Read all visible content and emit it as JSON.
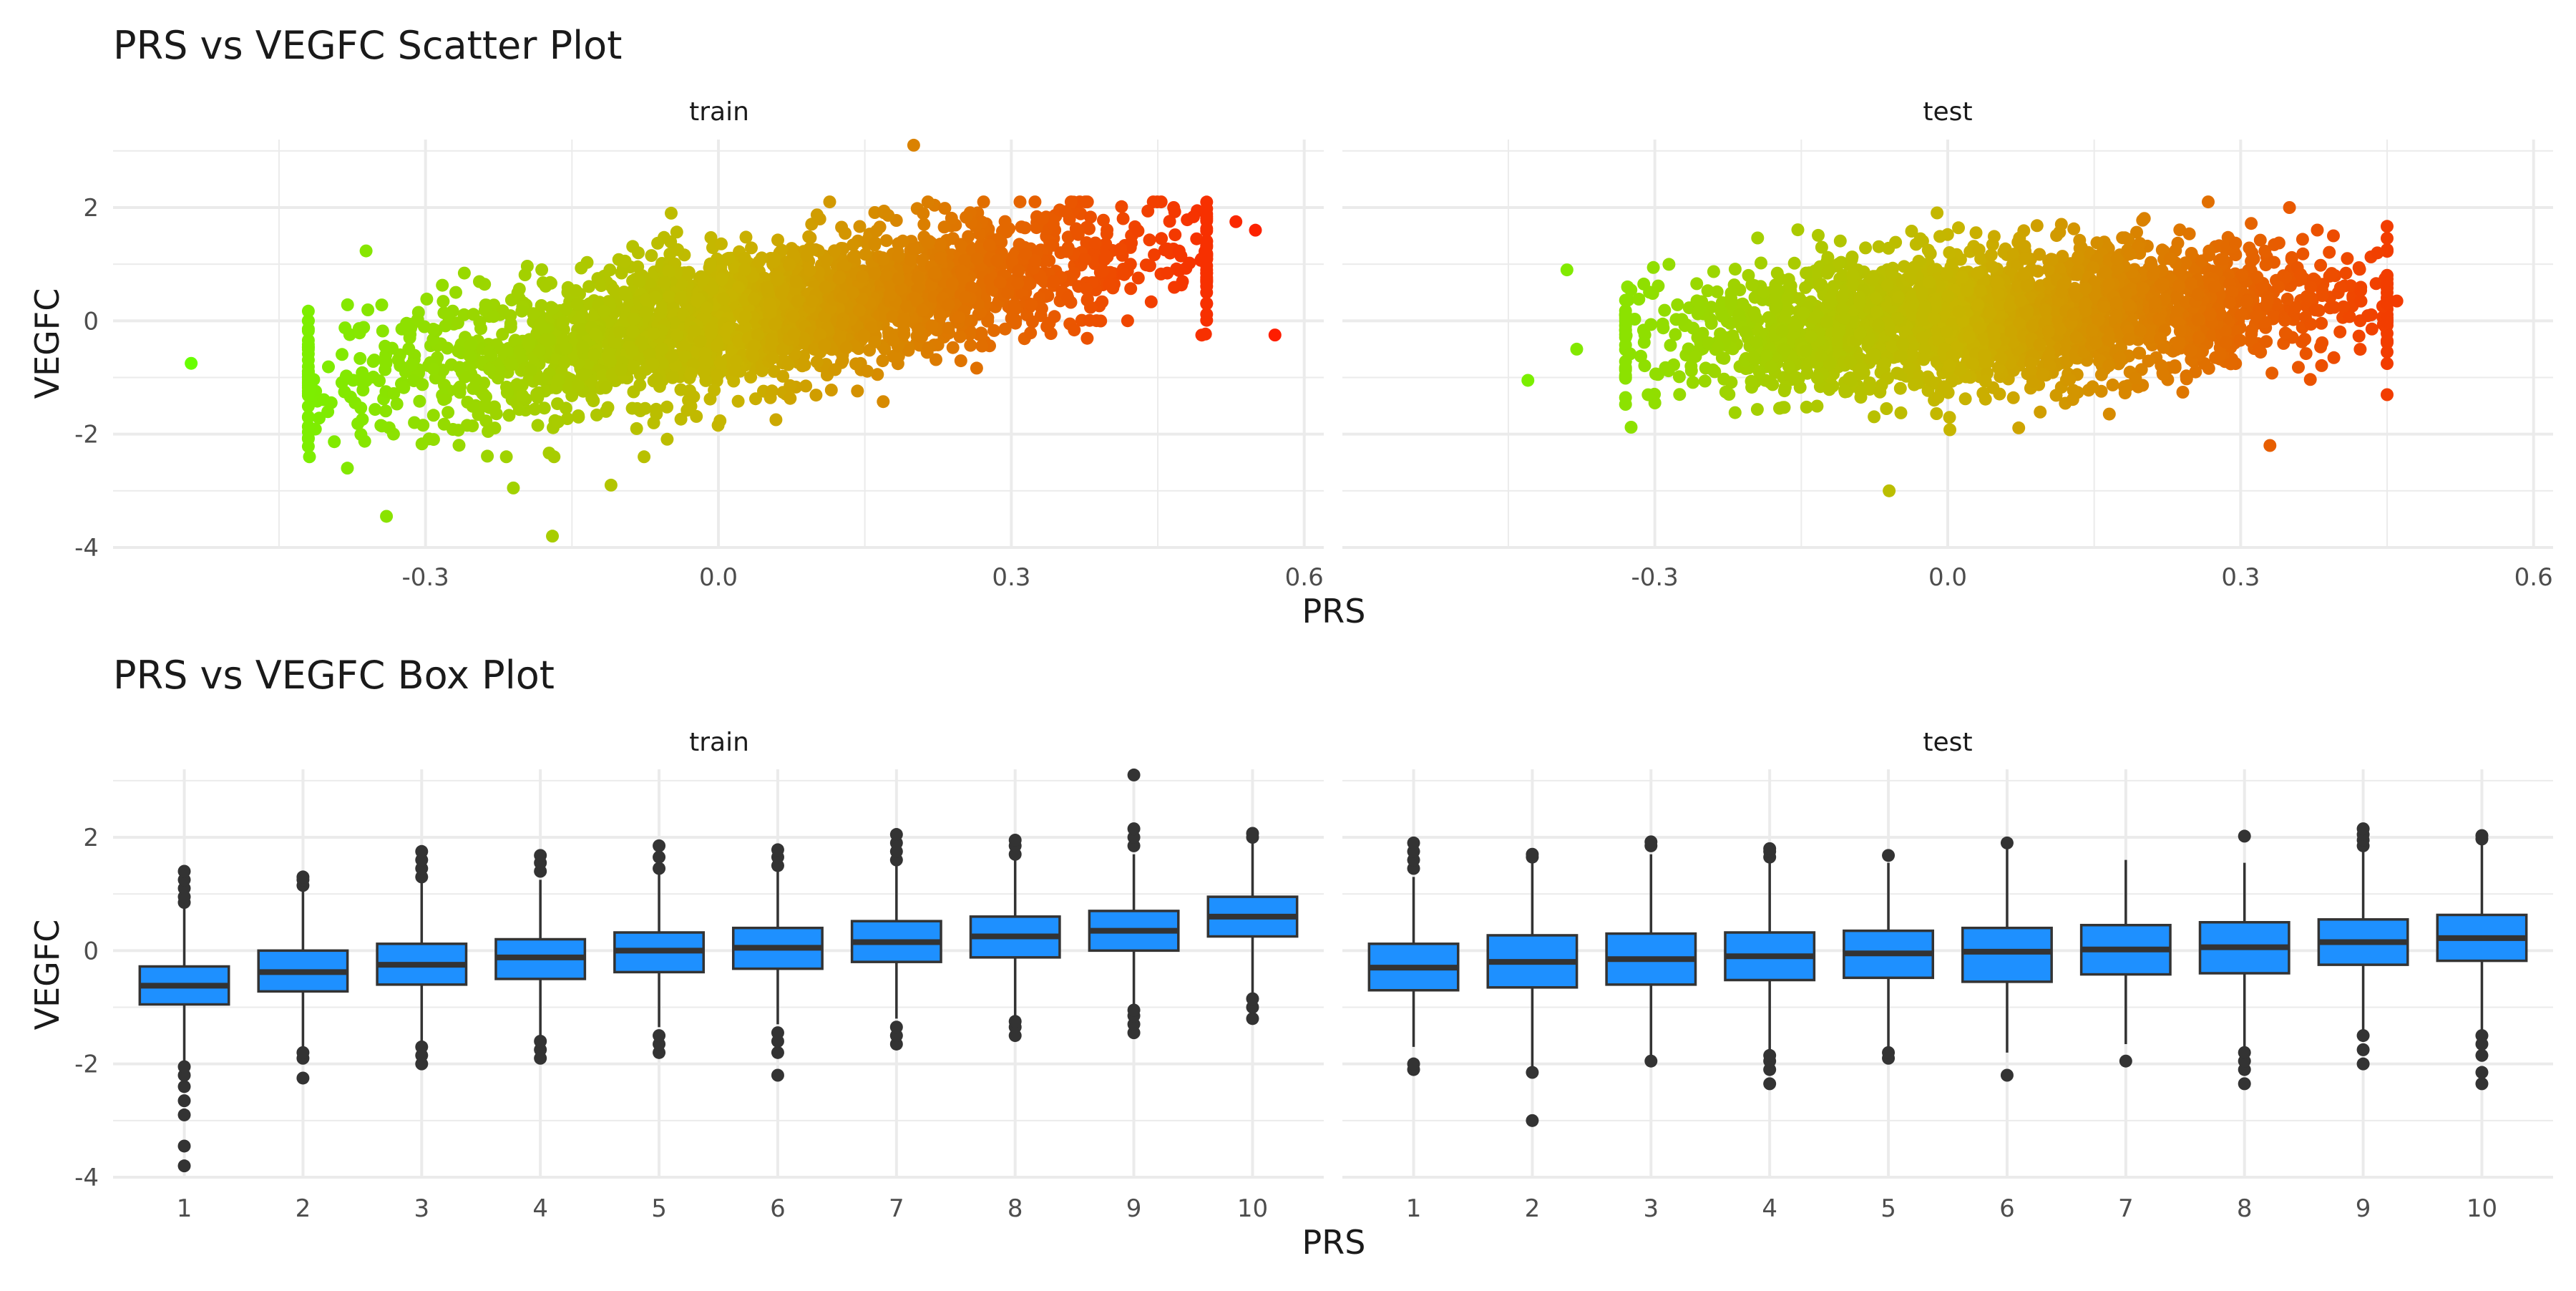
{
  "chart_data": [
    {
      "type": "scatter",
      "title": "PRS vs VEGFC Scatter Plot",
      "xlabel": "PRS",
      "ylabel": "VEGFC",
      "xlim": [
        -0.6,
        0.6
      ],
      "ylim": [
        -4,
        3.2
      ],
      "x_ticks": [
        -0.3,
        0.0,
        0.3,
        0.6
      ],
      "x_tick_labels": [
        "-0.3",
        "0.0",
        "0.3",
        "0.6"
      ],
      "y_ticks": [
        -4,
        -2,
        0,
        2
      ],
      "y_tick_labels": [
        "-4",
        "-2",
        "0",
        "2"
      ],
      "grid": true,
      "legend": "none",
      "color_scale": {
        "low": "#66ff00",
        "mid": "#c8b400",
        "high": "#ff1a00"
      },
      "panels": [
        {
          "label": "train",
          "x_range": [
            -0.42,
            0.5
          ],
          "trend": {
            "intercept": 0.0,
            "slope": 2.7
          },
          "spread_sd": 0.62,
          "outliers": [
            {
              "x": -0.54,
              "y": -0.75
            },
            {
              "x": -0.42,
              "y": 0.0
            },
            {
              "x": -0.38,
              "y": -2.6
            },
            {
              "x": -0.34,
              "y": -3.45
            },
            {
              "x": -0.21,
              "y": -2.95
            },
            {
              "x": -0.17,
              "y": -3.8
            },
            {
              "x": -0.11,
              "y": -2.9
            },
            {
              "x": 0.2,
              "y": 3.1
            },
            {
              "x": 0.57,
              "y": -0.25
            },
            {
              "x": 0.55,
              "y": 1.6
            },
            {
              "x": 0.53,
              "y": 1.75
            },
            {
              "x": 0.5,
              "y": 0.5
            }
          ]
        },
        {
          "label": "test",
          "x_range": [
            -0.33,
            0.45
          ],
          "trend": {
            "intercept": 0.0,
            "slope": 1.0
          },
          "spread_sd": 0.58,
          "outliers": [
            {
              "x": -0.43,
              "y": -1.05
            },
            {
              "x": -0.39,
              "y": 0.9
            },
            {
              "x": -0.38,
              "y": -0.5
            },
            {
              "x": -0.06,
              "y": -3.0
            },
            {
              "x": 0.35,
              "y": 2.0
            },
            {
              "x": 0.33,
              "y": -2.2
            },
            {
              "x": 0.46,
              "y": 0.35
            },
            {
              "x": 0.44,
              "y": 1.2
            }
          ]
        }
      ]
    },
    {
      "type": "box",
      "title": "PRS vs VEGFC Box Plot",
      "xlabel": "PRS",
      "ylabel": "VEGFC",
      "ylim": [
        -4,
        3.2
      ],
      "y_ticks": [
        -4,
        -2,
        0,
        2
      ],
      "y_tick_labels": [
        "-4",
        "-2",
        "0",
        "2"
      ],
      "categories": [
        "1",
        "2",
        "3",
        "4",
        "5",
        "6",
        "7",
        "8",
        "9",
        "10"
      ],
      "fill_color": "#1e90ff",
      "grid": true,
      "legend": "none",
      "panels": [
        {
          "label": "train",
          "boxes": [
            {
              "q1": -0.95,
              "median": -0.62,
              "q3": -0.28,
              "wlow": -1.95,
              "whigh": 0.75,
              "outliers": [
                -3.8,
                -3.45,
                -2.9,
                -2.65,
                -2.4,
                -2.2,
                -2.05,
                0.85,
                0.95,
                1.1,
                1.25,
                1.4
              ]
            },
            {
              "q1": -0.72,
              "median": -0.38,
              "q3": 0.0,
              "wlow": -1.75,
              "whigh": 1.05,
              "outliers": [
                -2.25,
                -1.9,
                -1.8,
                1.15,
                1.25,
                1.3
              ]
            },
            {
              "q1": -0.6,
              "median": -0.25,
              "q3": 0.12,
              "wlow": -1.6,
              "whigh": 1.2,
              "outliers": [
                -2.0,
                -1.85,
                -1.7,
                1.3,
                1.45,
                1.6,
                1.75
              ]
            },
            {
              "q1": -0.5,
              "median": -0.12,
              "q3": 0.2,
              "wlow": -1.5,
              "whigh": 1.25,
              "outliers": [
                -1.9,
                -1.75,
                -1.6,
                1.4,
                1.55,
                1.68
              ]
            },
            {
              "q1": -0.38,
              "median": 0.0,
              "q3": 0.32,
              "wlow": -1.35,
              "whigh": 1.35,
              "outliers": [
                -1.8,
                -1.65,
                -1.5,
                1.45,
                1.65,
                1.85
              ]
            },
            {
              "q1": -0.32,
              "median": 0.05,
              "q3": 0.4,
              "wlow": -1.3,
              "whigh": 1.4,
              "outliers": [
                -2.2,
                -1.8,
                -1.6,
                -1.45,
                1.5,
                1.65,
                1.78
              ]
            },
            {
              "q1": -0.2,
              "median": 0.15,
              "q3": 0.52,
              "wlow": -1.2,
              "whigh": 1.5,
              "outliers": [
                -1.65,
                -1.5,
                -1.35,
                1.6,
                1.75,
                1.9,
                2.05
              ]
            },
            {
              "q1": -0.12,
              "median": 0.25,
              "q3": 0.6,
              "wlow": -1.15,
              "whigh": 1.6,
              "outliers": [
                -1.5,
                -1.35,
                -1.25,
                1.7,
                1.85,
                1.95
              ]
            },
            {
              "q1": 0.0,
              "median": 0.35,
              "q3": 0.7,
              "wlow": -0.95,
              "whigh": 1.7,
              "outliers": [
                -1.45,
                -1.3,
                -1.15,
                -1.05,
                1.85,
                2.0,
                2.15,
                3.1
              ]
            },
            {
              "q1": 0.25,
              "median": 0.6,
              "q3": 0.95,
              "wlow": -0.75,
              "whigh": 1.95,
              "outliers": [
                -1.2,
                -1.0,
                -0.85,
                2.0,
                2.07
              ]
            }
          ]
        },
        {
          "label": "test",
          "boxes": [
            {
              "q1": -0.7,
              "median": -0.3,
              "q3": 0.12,
              "wlow": -1.7,
              "whigh": 1.3,
              "outliers": [
                -2.1,
                -2.0,
                1.45,
                1.6,
                1.75,
                1.9
              ]
            },
            {
              "q1": -0.65,
              "median": -0.2,
              "q3": 0.27,
              "wlow": -2.1,
              "whigh": 1.6,
              "outliers": [
                -3.0,
                -2.15,
                1.65,
                1.7
              ]
            },
            {
              "q1": -0.6,
              "median": -0.15,
              "q3": 0.3,
              "wlow": -1.9,
              "whigh": 1.7,
              "outliers": [
                -1.95,
                1.85,
                1.92
              ]
            },
            {
              "q1": -0.52,
              "median": -0.1,
              "q3": 0.32,
              "wlow": -1.75,
              "whigh": 1.6,
              "outliers": [
                -2.35,
                -2.1,
                -1.95,
                -1.85,
                1.65,
                1.75,
                1.8
              ]
            },
            {
              "q1": -0.48,
              "median": -0.05,
              "q3": 0.35,
              "wlow": -1.75,
              "whigh": 1.55,
              "outliers": [
                -1.9,
                -1.8,
                1.68
              ]
            },
            {
              "q1": -0.55,
              "median": -0.02,
              "q3": 0.4,
              "wlow": -1.8,
              "whigh": 1.85,
              "outliers": [
                -2.2,
                1.9
              ]
            },
            {
              "q1": -0.42,
              "median": 0.02,
              "q3": 0.45,
              "wlow": -1.65,
              "whigh": 1.6,
              "outliers": [
                -1.95
              ]
            },
            {
              "q1": -0.4,
              "median": 0.06,
              "q3": 0.5,
              "wlow": -1.7,
              "whigh": 1.55,
              "outliers": [
                -2.35,
                -2.1,
                -1.95,
                -1.8,
                2.02
              ]
            },
            {
              "q1": -0.25,
              "median": 0.15,
              "q3": 0.55,
              "wlow": -1.45,
              "whigh": 1.75,
              "outliers": [
                -2.0,
                -1.75,
                -1.5,
                1.85,
                1.95,
                2.05,
                2.15
              ]
            },
            {
              "q1": -0.18,
              "median": 0.22,
              "q3": 0.63,
              "wlow": -1.4,
              "whigh": 1.95,
              "outliers": [
                -2.35,
                -2.15,
                -1.85,
                -1.65,
                -1.5,
                1.97,
                2.03
              ]
            }
          ]
        }
      ]
    }
  ]
}
